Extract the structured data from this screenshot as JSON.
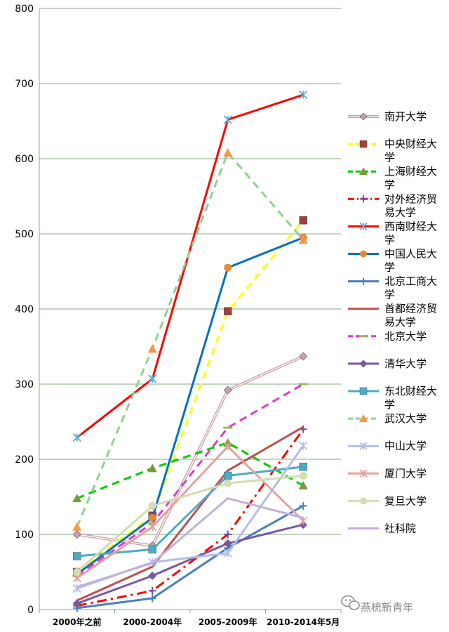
{
  "chart_data": {
    "type": "line",
    "title": "",
    "xlabel": "",
    "ylabel": "",
    "ylim": [
      0,
      800
    ],
    "yticks": [
      0,
      100,
      200,
      300,
      400,
      500,
      600,
      700,
      800
    ],
    "grid": true,
    "legend_position": "right",
    "categories": [
      "2000年之前",
      "2000-2004年",
      "2005-2009年",
      "2010-2014年5月"
    ],
    "series": [
      {
        "name": "南开大学",
        "values": [
          100,
          85,
          292,
          337
        ],
        "color": "#c9a0a8",
        "marker": "diamond",
        "dash": "double"
      },
      {
        "name": "中央财经大学",
        "values": [
          50,
          125,
          397,
          518
        ],
        "color": "#ffff00",
        "marker": "square",
        "markerColor": "#a0403c",
        "dash": "dashed"
      },
      {
        "name": "上海财经大学",
        "values": [
          148,
          188,
          222,
          165
        ],
        "color": "#00cc00",
        "marker": "triangle",
        "markerColor": "#7a9a3a",
        "dash": "dashed"
      },
      {
        "name": "对外经济贸易大学",
        "values": [
          5,
          25,
          100,
          240
        ],
        "color": "#ff0000",
        "marker": "plus",
        "markerColor": "#7050a0",
        "dash": "dashdot"
      },
      {
        "name": "西南财经大学",
        "values": [
          229,
          307,
          652,
          685
        ],
        "color": "#ff0000",
        "marker": "star",
        "markerColor": "#5ab0d0",
        "dash": "solid"
      },
      {
        "name": "中国人民大学",
        "values": [
          47,
          122,
          455,
          495
        ],
        "color": "#0070c0",
        "marker": "circle",
        "markerColor": "#e08a3c",
        "dash": "solid"
      },
      {
        "name": "北京工商大学",
        "values": [
          2,
          15,
          82,
          138
        ],
        "color": "#4a7fc0",
        "marker": "plus",
        "markerColor": "#4a7fc0",
        "dash": "solid"
      },
      {
        "name": "首都经济贸易大学",
        "values": [
          12,
          57,
          185,
          243
        ],
        "color": "#c0504d",
        "marker": "none",
        "dash": "solid"
      },
      {
        "name": "北京大学",
        "values": [
          45,
          115,
          242,
          300
        ],
        "color": "#e03cc8",
        "marker": "dash",
        "markerColor": "#9bbb59",
        "dash": "dashed"
      },
      {
        "name": "清华大学",
        "values": [
          8,
          45,
          88,
          113
        ],
        "color": "#7a56a8",
        "marker": "diamond",
        "markerColor": "#7a56a8",
        "dash": "solid"
      },
      {
        "name": "东北财经大学",
        "values": [
          71,
          80,
          178,
          190
        ],
        "color": "#4bacc6",
        "marker": "square",
        "markerColor": "#4bacc6",
        "dash": "solid"
      },
      {
        "name": "武汉大学",
        "values": [
          110,
          347,
          608,
          492
        ],
        "color": "#8ed28e",
        "marker": "triangle",
        "markerColor": "#f79646",
        "dash": "dashed"
      },
      {
        "name": "中山大学",
        "values": [
          28,
          63,
          75,
          218
        ],
        "color": "#b4bee6",
        "marker": "star",
        "markerColor": "#b4bee6",
        "dash": "solid"
      },
      {
        "name": "厦门大学",
        "values": [
          42,
          110,
          217,
          118
        ],
        "color": "#e6a0a0",
        "marker": "star",
        "markerColor": "#e6a0a0",
        "dash": "solid"
      },
      {
        "name": "复旦大学",
        "values": [
          50,
          138,
          168,
          178
        ],
        "color": "#d4dcb0",
        "marker": "circle",
        "markerColor": "#d4dcb0",
        "dash": "solid"
      },
      {
        "name": "社科院",
        "values": [
          30,
          62,
          148,
          122
        ],
        "color": "#c2b0d8",
        "marker": "none",
        "dash": "solid"
      }
    ]
  },
  "watermark": {
    "text": "燕梳新青年",
    "icon": "wechat-icon"
  }
}
